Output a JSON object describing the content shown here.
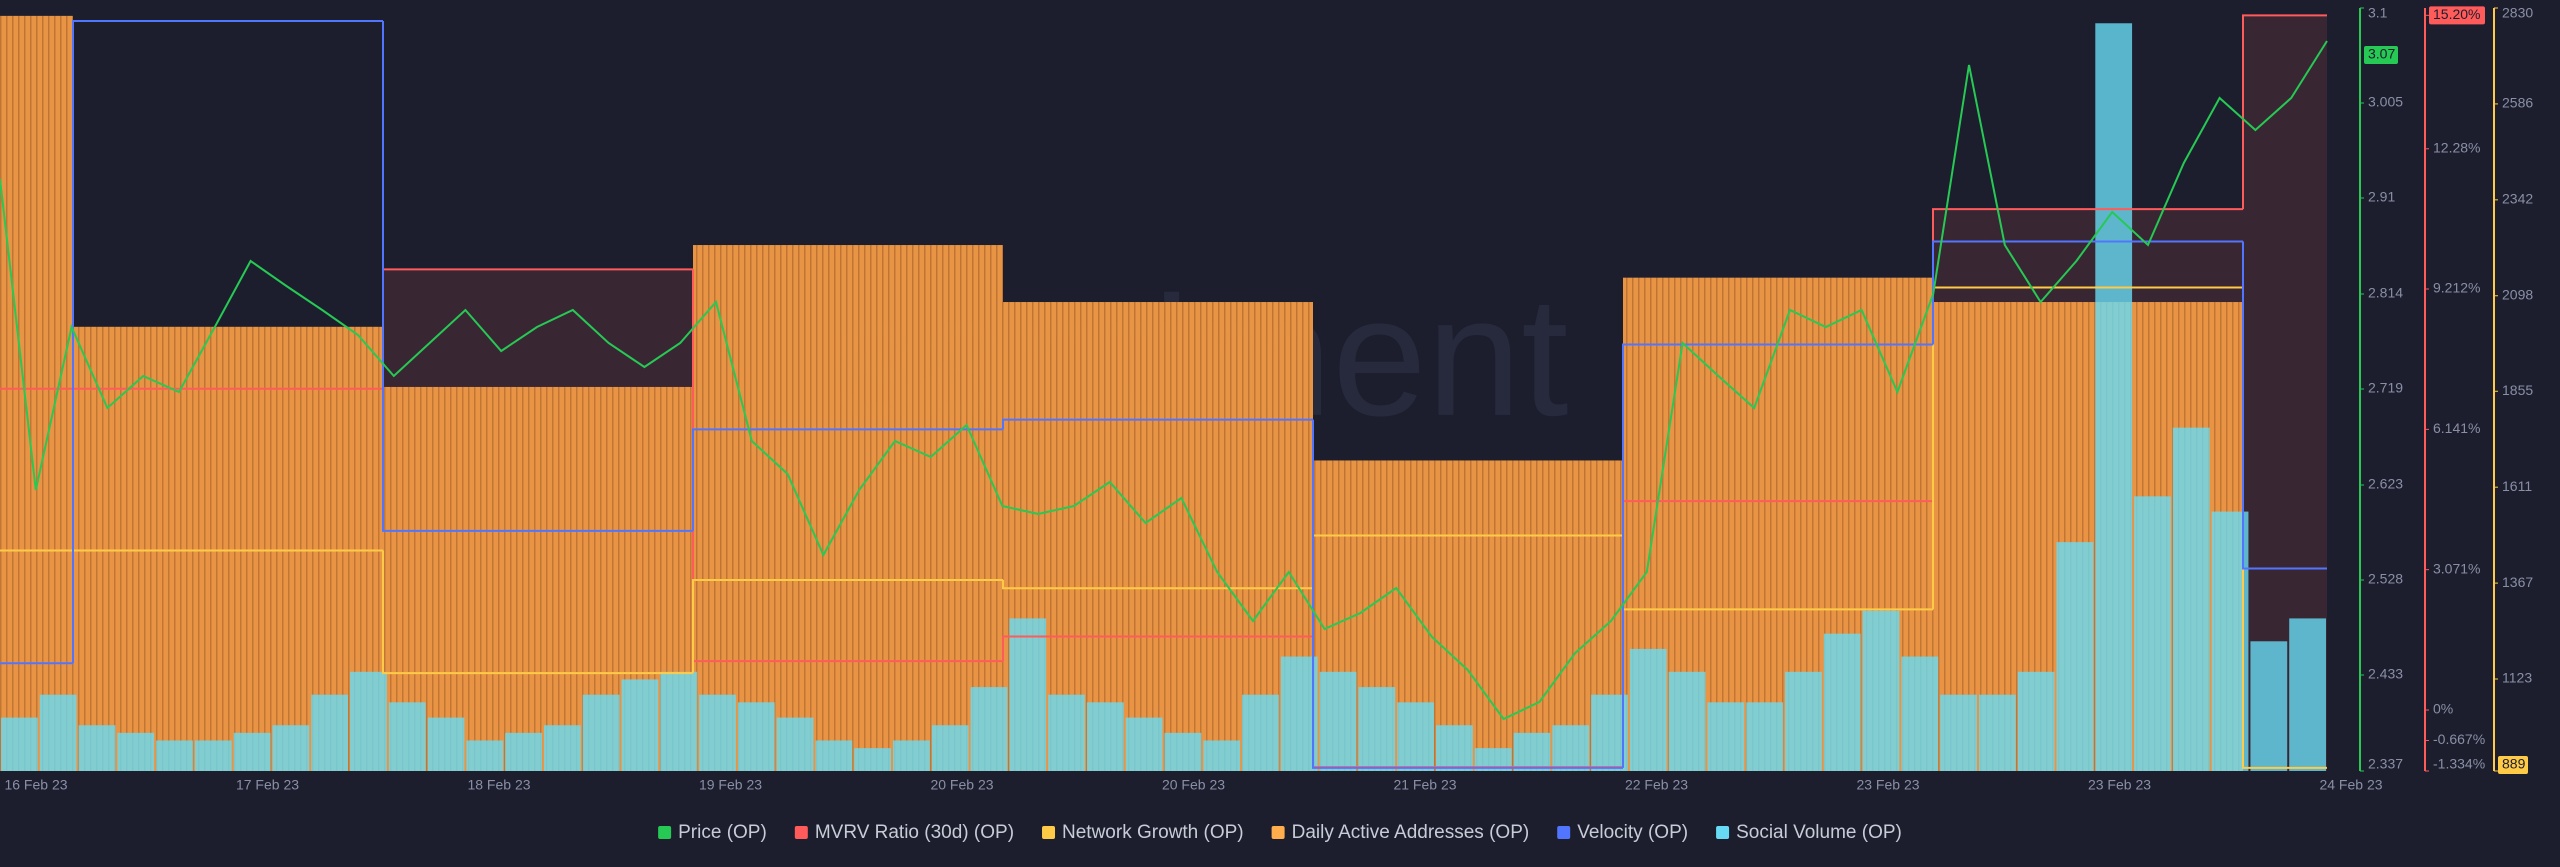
{
  "chart_data": {
    "type": "combo",
    "watermark": "santiment",
    "x_labels": [
      "16 Feb 23",
      "17 Feb 23",
      "18 Feb 23",
      "19 Feb 23",
      "20 Feb 23",
      "20 Feb 23",
      "21 Feb 23",
      "22 Feb 23",
      "23 Feb 23",
      "23 Feb 23",
      "24 Feb 23"
    ],
    "current_price_label": "3.07",
    "ylim": [
      2.337,
      3.1
    ],
    "yticks": [
      2.337,
      2.433,
      2.528,
      2.623,
      2.719,
      2.814,
      2.91,
      3.005,
      3.1
    ],
    "y2lim": [
      -1.334,
      15.36
    ],
    "y2ticks": [
      {
        "value": -1.334,
        "label": "-1.334%"
      },
      {
        "value": -0.667,
        "label": "-0.667%"
      },
      {
        "value": 0,
        "label": "0%"
      },
      {
        "value": 3.071,
        "label": "3.071%"
      },
      {
        "value": 6.141,
        "label": "6.141%"
      },
      {
        "value": 9.212,
        "label": "9.212%"
      },
      {
        "value": 12.28,
        "label": "12.28%"
      },
      {
        "value": 15.2,
        "label": "15.20%"
      }
    ],
    "y3lim": [
      889,
      2830
    ],
    "y3ticks": [
      889,
      1123,
      1367,
      1611,
      1855,
      2098,
      2342,
      2586,
      2830
    ],
    "y4lim": [
      0,
      100
    ],
    "series": [
      {
        "name": "Price (OP)",
        "color": "#26c953",
        "type": "line",
        "axis": "y",
        "values": [
          2.929,
          2.618,
          2.781,
          2.7,
          2.732,
          2.716,
          2.781,
          2.847,
          2.822,
          2.798,
          2.773,
          2.732,
          2.765,
          2.798,
          2.757,
          2.781,
          2.798,
          2.765,
          2.741,
          2.765,
          2.806,
          2.667,
          2.634,
          2.553,
          2.618,
          2.667,
          2.651,
          2.683,
          2.602,
          2.594,
          2.602,
          2.626,
          2.585,
          2.61,
          2.536,
          2.487,
          2.536,
          2.479,
          2.495,
          2.52,
          2.471,
          2.438,
          2.389,
          2.406,
          2.455,
          2.487,
          2.536,
          2.765,
          2.732,
          2.7,
          2.798,
          2.781,
          2.798,
          2.716,
          2.814,
          3.043,
          2.863,
          2.806,
          2.847,
          2.896,
          2.863,
          2.945,
          3.01,
          2.978,
          3.01,
          3.067
        ]
      },
      {
        "name": "MVRV Ratio (30d) (OP)",
        "color": "#ff5b5b",
        "type": "step",
        "axis": "y2",
        "values": [
          7.03,
          7.03,
          9.64,
          1.07,
          1.61,
          -1.25,
          4.57,
          10.96,
          15.2
        ]
      },
      {
        "name": "Network Growth (OP)",
        "color": "#ffcb47",
        "type": "step",
        "axis": "y3",
        "values": [
          1450,
          1450,
          1138,
          1375,
          1354,
          1488,
          1300,
          2119,
          897
        ]
      },
      {
        "name": "Daily Active Addresses (OP)",
        "color": "#ffad4d",
        "type": "daybar",
        "axis": "y3",
        "values": [
          2810,
          2019,
          1866,
          2227,
          2082,
          1679,
          2144,
          2082,
          889
        ]
      },
      {
        "name": "Velocity (OP)",
        "color": "#5275ff",
        "type": "step",
        "axis": "y3",
        "values": [
          1163,
          2797,
          1500,
          1758,
          1783,
          897,
          1974,
          2236,
          1404
        ]
      },
      {
        "name": "Social Volume (OP)",
        "color": "#68dbf4",
        "type": "bar",
        "axis": "y4",
        "values": [
          7,
          10,
          6,
          5,
          4,
          4,
          5,
          6,
          10,
          13,
          9,
          7,
          4,
          5,
          6,
          10,
          12,
          13,
          10,
          9,
          7,
          4,
          3,
          4,
          6,
          11,
          20,
          10,
          9,
          7,
          5,
          4,
          10,
          15,
          13,
          11,
          9,
          6,
          3,
          5,
          6,
          10,
          16,
          13,
          9,
          9,
          13,
          18,
          21,
          15,
          10,
          10,
          13,
          30,
          98,
          36,
          45,
          34,
          17,
          20
        ]
      }
    ]
  }
}
